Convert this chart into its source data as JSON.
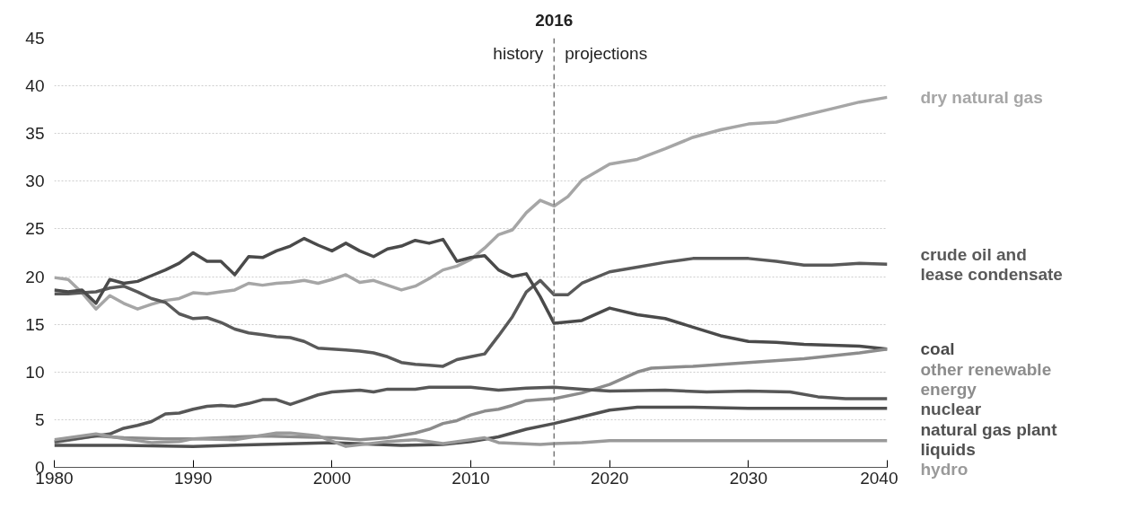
{
  "chart_data": {
    "type": "line",
    "xlim": [
      1980,
      2040
    ],
    "xticks": [
      1980,
      1990,
      2000,
      2010,
      2020,
      2030,
      2040
    ],
    "ylim": [
      0,
      45
    ],
    "yticks": [
      0,
      5,
      10,
      15,
      20,
      25,
      30,
      35,
      40,
      45
    ],
    "grid": "y",
    "legend": false,
    "line_style": "solid",
    "ref_lines": [
      {
        "axis": "x",
        "value": 2016,
        "label": "2016",
        "line_style": "dashed",
        "color": "#777777"
      }
    ],
    "annotations": [
      "history",
      "projections"
    ],
    "series": [
      {
        "name": "dry natural gas",
        "color": "#a6a6a6",
        "x": [
          1980,
          1981,
          1982,
          1983,
          1984,
          1985,
          1986,
          1987,
          1988,
          1989,
          1990,
          1991,
          1992,
          1993,
          1994,
          1995,
          1996,
          1997,
          1998,
          1999,
          2000,
          2001,
          2002,
          2003,
          2004,
          2005,
          2006,
          2007,
          2008,
          2009,
          2010,
          2011,
          2012,
          2013,
          2014,
          2015,
          2016,
          2017,
          2018,
          2020,
          2022,
          2024,
          2026,
          2028,
          2030,
          2032,
          2034,
          2036,
          2038,
          2040
        ],
        "values": [
          19.9,
          19.7,
          18.3,
          16.6,
          18.0,
          17.2,
          16.6,
          17.1,
          17.5,
          17.7,
          18.3,
          18.2,
          18.4,
          18.6,
          19.3,
          19.1,
          19.3,
          19.4,
          19.6,
          19.3,
          19.7,
          20.2,
          19.4,
          19.6,
          19.1,
          18.6,
          19.0,
          19.8,
          20.7,
          21.1,
          21.8,
          23.0,
          24.4,
          24.9,
          26.7,
          28.0,
          27.4,
          28.4,
          30.1,
          31.8,
          32.3,
          33.4,
          34.6,
          35.4,
          36.0,
          36.2,
          36.9,
          37.6,
          38.3,
          38.8
        ]
      },
      {
        "name": "crude oil and lease condensate",
        "color": "#595959",
        "x": [
          1980,
          1981,
          1982,
          1983,
          1984,
          1985,
          1986,
          1987,
          1988,
          1989,
          1990,
          1991,
          1992,
          1993,
          1994,
          1995,
          1996,
          1997,
          1998,
          1999,
          2000,
          2001,
          2002,
          2003,
          2004,
          2005,
          2006,
          2007,
          2008,
          2009,
          2010,
          2011,
          2012,
          2013,
          2014,
          2015,
          2016,
          2017,
          2018,
          2020,
          2022,
          2024,
          2026,
          2028,
          2030,
          2032,
          2034,
          2036,
          2038,
          2040
        ],
        "values": [
          18.2,
          18.2,
          18.3,
          18.4,
          18.8,
          19.0,
          18.4,
          17.7,
          17.3,
          16.1,
          15.6,
          15.7,
          15.2,
          14.5,
          14.1,
          13.9,
          13.7,
          13.6,
          13.2,
          12.5,
          12.4,
          12.3,
          12.2,
          12.0,
          11.6,
          11.0,
          10.8,
          10.7,
          10.6,
          11.3,
          11.6,
          11.9,
          13.8,
          15.8,
          18.4,
          19.6,
          18.1,
          18.1,
          19.3,
          20.5,
          21.0,
          21.5,
          21.9,
          21.9,
          21.9,
          21.6,
          21.2,
          21.2,
          21.4,
          21.3
        ]
      },
      {
        "name": "coal",
        "color": "#4a4a4a",
        "x": [
          1980,
          1981,
          1982,
          1983,
          1984,
          1985,
          1986,
          1987,
          1988,
          1989,
          1990,
          1991,
          1992,
          1993,
          1994,
          1995,
          1996,
          1997,
          1998,
          1999,
          2000,
          2001,
          2002,
          2003,
          2004,
          2005,
          2006,
          2007,
          2008,
          2009,
          2010,
          2011,
          2012,
          2013,
          2014,
          2015,
          2016,
          2018,
          2020,
          2022,
          2024,
          2026,
          2028,
          2030,
          2032,
          2034,
          2036,
          2038,
          2040
        ],
        "values": [
          18.6,
          18.4,
          18.6,
          17.2,
          19.7,
          19.3,
          19.5,
          20.1,
          20.7,
          21.4,
          22.5,
          21.6,
          21.6,
          20.2,
          22.1,
          22.0,
          22.7,
          23.2,
          24.0,
          23.3,
          22.7,
          23.5,
          22.7,
          22.1,
          22.9,
          23.2,
          23.8,
          23.5,
          23.9,
          21.6,
          22.0,
          22.2,
          20.7,
          20.0,
          20.3,
          17.9,
          15.1,
          15.4,
          16.7,
          16.0,
          15.6,
          14.7,
          13.8,
          13.2,
          13.1,
          12.9,
          12.8,
          12.7,
          12.4
        ]
      },
      {
        "name": "other renewable energy",
        "color": "#8c8c8c",
        "x": [
          1980,
          1983,
          1985,
          1988,
          1990,
          1995,
          2000,
          2002,
          2004,
          2006,
          2007,
          2008,
          2009,
          2010,
          2011,
          2012,
          2013,
          2014,
          2015,
          2016,
          2018,
          2020,
          2022,
          2023,
          2026,
          2030,
          2034,
          2038,
          2040
        ],
        "values": [
          2.6,
          3.3,
          3.1,
          3.0,
          3.0,
          3.3,
          3.1,
          2.9,
          3.1,
          3.6,
          4.0,
          4.6,
          4.9,
          5.5,
          5.9,
          6.1,
          6.5,
          7.0,
          7.1,
          7.2,
          7.8,
          8.7,
          10.0,
          10.4,
          10.6,
          11.0,
          11.4,
          12.0,
          12.4
        ]
      },
      {
        "name": "nuclear",
        "color": "#575757",
        "x": [
          1980,
          1982,
          1984,
          1985,
          1986,
          1987,
          1988,
          1989,
          1990,
          1991,
          1992,
          1993,
          1994,
          1995,
          1996,
          1997,
          1998,
          1999,
          2000,
          2002,
          2003,
          2004,
          2006,
          2007,
          2008,
          2010,
          2012,
          2014,
          2016,
          2018,
          2020,
          2024,
          2027,
          2030,
          2033,
          2035,
          2037,
          2040
        ],
        "values": [
          2.7,
          3.1,
          3.5,
          4.1,
          4.4,
          4.8,
          5.6,
          5.7,
          6.1,
          6.4,
          6.5,
          6.4,
          6.7,
          7.1,
          7.1,
          6.6,
          7.1,
          7.6,
          7.9,
          8.1,
          7.9,
          8.2,
          8.2,
          8.4,
          8.4,
          8.4,
          8.1,
          8.3,
          8.4,
          8.2,
          8.0,
          8.1,
          7.9,
          8.0,
          7.9,
          7.4,
          7.2,
          7.2
        ]
      },
      {
        "name": "natural gas plant liquids",
        "color": "#505050",
        "x": [
          1980,
          1985,
          1990,
          1995,
          2000,
          2005,
          2008,
          2010,
          2012,
          2014,
          2016,
          2018,
          2020,
          2022,
          2026,
          2030,
          2035,
          2040
        ],
        "values": [
          2.3,
          2.3,
          2.2,
          2.4,
          2.6,
          2.3,
          2.4,
          2.7,
          3.2,
          4.0,
          4.6,
          5.3,
          6.0,
          6.3,
          6.3,
          6.2,
          6.2,
          6.2
        ]
      },
      {
        "name": "hydro",
        "color": "#9a9a9a",
        "x": [
          1980,
          1983,
          1985,
          1987,
          1989,
          1990,
          1993,
          1996,
          1997,
          1999,
          2001,
          2004,
          2006,
          2008,
          2011,
          2012,
          2015,
          2016,
          2018,
          2020,
          2025,
          2030,
          2040
        ],
        "values": [
          2.9,
          3.5,
          3.0,
          2.6,
          2.7,
          3.0,
          2.9,
          3.6,
          3.6,
          3.3,
          2.2,
          2.7,
          2.9,
          2.5,
          3.1,
          2.6,
          2.4,
          2.5,
          2.6,
          2.8,
          2.8,
          2.8,
          2.8
        ]
      }
    ]
  }
}
